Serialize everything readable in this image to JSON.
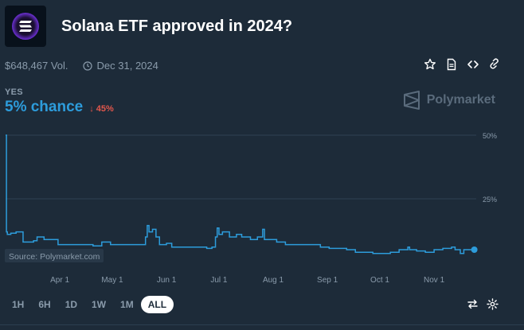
{
  "market": {
    "title": "Solana ETF approved in 2024?",
    "volume": "$648,467 Vol.",
    "end_date": "Dec 31, 2024",
    "outcome_label": "YES",
    "chance": "5% chance",
    "change": "45%",
    "brand": "Polymarket"
  },
  "actions": [
    "star-icon",
    "document-icon",
    "embed-code-icon",
    "link-icon"
  ],
  "range_buttons": [
    {
      "label": "1H",
      "active": false
    },
    {
      "label": "6H",
      "active": false
    },
    {
      "label": "1D",
      "active": false
    },
    {
      "label": "1W",
      "active": false
    },
    {
      "label": "1M",
      "active": false
    },
    {
      "label": "ALL",
      "active": true
    }
  ],
  "colors": {
    "background": "#1d2b39",
    "accent": "#2d9cdb",
    "negative": "#e2574c",
    "muted": "#8a9bab"
  },
  "chart_data": {
    "type": "line",
    "watermark": "Source: Polymarket.com",
    "ylim": [
      0,
      50
    ],
    "y_ticks": [
      25,
      50
    ],
    "y_tick_labels": [
      "25%",
      "50%"
    ],
    "x_tick_labels": [
      "Apr 1",
      "May 1",
      "Jun 1",
      "Jul 1",
      "Aug 1",
      "Sep 1",
      "Oct 1",
      "Nov 1"
    ],
    "x_tick_positions": [
      31,
      61,
      92,
      122,
      153,
      184,
      214,
      245
    ],
    "x_range": [
      0,
      270
    ],
    "series": [
      {
        "x": [
          0,
          0.5,
          1,
          3,
          6,
          10,
          16,
          18,
          22,
          30,
          40,
          50,
          55,
          60,
          63,
          66,
          75,
          78,
          80,
          81,
          82,
          84,
          86,
          88,
          92,
          95,
          98,
          105,
          115,
          118,
          120,
          121,
          122,
          124,
          128,
          132,
          135,
          140,
          144,
          147,
          148,
          150,
          155,
          160,
          170,
          180,
          185,
          195,
          200,
          210,
          214,
          220,
          225,
          230,
          231,
          235,
          240,
          245,
          250,
          253,
          255,
          257,
          260,
          262,
          265,
          268
        ],
        "y": [
          50,
          12,
          11,
          11.5,
          12,
          8,
          8.5,
          10,
          9,
          7,
          7,
          6.5,
          8,
          7,
          7,
          7,
          7,
          7,
          10,
          14.5,
          12,
          13,
          10,
          7,
          7.5,
          6,
          6,
          6,
          5.5,
          6,
          10,
          13.5,
          11,
          12,
          10,
          11,
          10,
          9,
          10,
          13,
          9,
          9,
          8,
          7,
          7,
          6,
          5.5,
          5,
          4,
          3.5,
          3.5,
          4,
          5,
          6,
          5,
          4.5,
          4,
          5,
          5.5,
          5.5,
          6,
          5,
          3.5,
          5,
          5,
          5
        ]
      }
    ]
  }
}
